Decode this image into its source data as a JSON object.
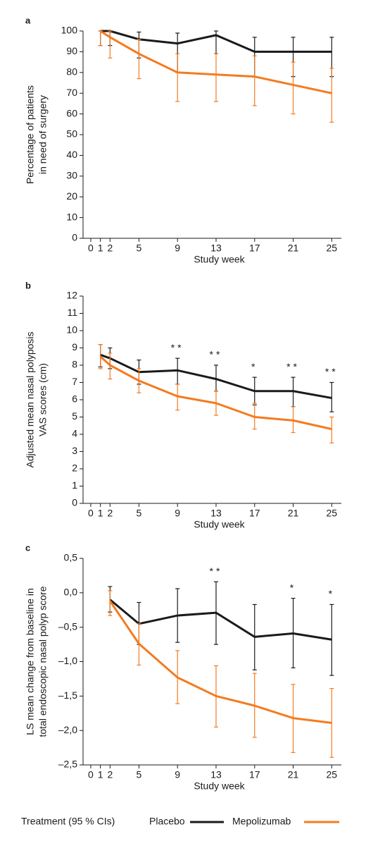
{
  "chart_data": [
    {
      "type": "line",
      "label": "a",
      "xlabel": "Study week",
      "ylabel": [
        "Percentage of patients",
        "in need of surgery"
      ],
      "x": [
        1,
        2,
        5,
        9,
        13,
        17,
        21,
        25
      ],
      "xlim": [
        -0.8,
        26
      ],
      "xticks": [
        0,
        1,
        2,
        5,
        9,
        13,
        17,
        21,
        25
      ],
      "ylim": [
        0,
        100
      ],
      "yticks": [
        0,
        10,
        20,
        30,
        40,
        50,
        60,
        70,
        80,
        90,
        100
      ],
      "series": [
        {
          "color": "#1a1a1a",
          "values": [
            100,
            100,
            96,
            94,
            98,
            90,
            90,
            90
          ],
          "lower": [
            93,
            93,
            87,
            80,
            89,
            78,
            78,
            78
          ],
          "upper": [
            100,
            100,
            99.5,
            99,
            100,
            97,
            97,
            97
          ]
        },
        {
          "color": "#f47b20",
          "values": [
            100,
            97,
            89,
            80,
            79,
            78,
            74,
            70
          ],
          "lower": [
            93,
            87,
            77,
            66,
            66,
            64,
            60,
            56
          ],
          "upper": [
            100,
            100,
            96,
            89,
            89,
            88,
            85,
            82
          ]
        }
      ],
      "annotations": []
    },
    {
      "type": "line",
      "label": "b",
      "xlabel": "Study week",
      "ylabel": [
        "Adjusted mean nasal polyposis",
        "VAS scores (cm)"
      ],
      "x": [
        1,
        2,
        5,
        9,
        13,
        17,
        21,
        25
      ],
      "xlim": [
        -0.8,
        26
      ],
      "xticks": [
        0,
        1,
        2,
        5,
        9,
        13,
        17,
        21,
        25
      ],
      "ylim": [
        0,
        12
      ],
      "yticks": [
        0,
        1,
        2,
        3,
        4,
        5,
        6,
        7,
        8,
        9,
        10,
        11,
        12
      ],
      "series": [
        {
          "color": "#1a1a1a",
          "values": [
            8.6,
            8.4,
            7.6,
            7.7,
            7.2,
            6.5,
            6.5,
            6.1
          ],
          "lower": [
            7.9,
            7.8,
            6.9,
            6.9,
            6.5,
            5.7,
            5.6,
            5.3
          ],
          "upper": [
            9.2,
            9.0,
            8.3,
            8.4,
            8.0,
            7.3,
            7.3,
            7.0
          ]
        },
        {
          "color": "#f47b20",
          "values": [
            8.5,
            8.0,
            7.1,
            6.2,
            5.8,
            5.0,
            4.8,
            4.3
          ],
          "lower": [
            7.8,
            7.2,
            6.4,
            5.4,
            5.1,
            4.3,
            4.1,
            3.5
          ],
          "upper": [
            9.2,
            8.7,
            7.8,
            6.9,
            6.5,
            5.8,
            5.6,
            5.0
          ]
        }
      ],
      "annotations": [
        {
          "x": 9,
          "label": "**"
        },
        {
          "x": 13,
          "label": "**"
        },
        {
          "x": 17,
          "label": "*"
        },
        {
          "x": 21,
          "label": "**"
        },
        {
          "x": 25,
          "label": "**"
        }
      ]
    },
    {
      "type": "line",
      "label": "c",
      "xlabel": "Study week",
      "ylabel": [
        "LS mean change from baseline in",
        "total endoscopic nasal polyp score"
      ],
      "x": [
        2,
        5,
        9,
        13,
        17,
        21,
        25
      ],
      "xlim": [
        -0.8,
        26
      ],
      "xticks": [
        0,
        1,
        2,
        5,
        9,
        13,
        17,
        21,
        25
      ],
      "ylim": [
        -2.5,
        0.5
      ],
      "yticks": [
        {
          "value": -2.5,
          "label": "–2,5"
        },
        {
          "value": -2.0,
          "label": "–2,0"
        },
        {
          "value": -1.5,
          "label": "–1,5"
        },
        {
          "value": -1.0,
          "label": "–1,0"
        },
        {
          "value": -0.5,
          "label": "–0,5"
        },
        {
          "value": 0,
          "label": "0,0"
        },
        {
          "value": 0.5,
          "label": "0,5"
        }
      ],
      "series": [
        {
          "color": "#1a1a1a",
          "values": [
            -0.1,
            -0.45,
            -0.33,
            -0.29,
            -0.64,
            -0.59,
            -0.68
          ],
          "lower": [
            -0.28,
            -0.75,
            -0.72,
            -0.75,
            -1.12,
            -1.09,
            -1.2
          ],
          "upper": [
            0.09,
            -0.14,
            0.06,
            0.16,
            -0.17,
            -0.08,
            -0.17
          ]
        },
        {
          "color": "#f47b20",
          "values": [
            -0.12,
            -0.74,
            -1.23,
            -1.5,
            -1.64,
            -1.82,
            -1.89
          ],
          "lower": [
            -0.33,
            -1.05,
            -1.61,
            -1.95,
            -2.1,
            -2.32,
            -2.39
          ],
          "upper": [
            0.03,
            -0.45,
            -0.84,
            -1.06,
            -1.17,
            -1.33,
            -1.39
          ]
        }
      ],
      "annotations": [
        {
          "x": 13,
          "label": "**"
        },
        {
          "x": 21,
          "label": "*"
        },
        {
          "x": 25,
          "label": "*"
        }
      ]
    }
  ],
  "legend": {
    "title": "Treatment (95 % CIs)",
    "entries": [
      {
        "name": "Placebo",
        "color": "#1a1a1a"
      },
      {
        "name": "Mepolizumab",
        "color": "#f47b20"
      }
    ]
  }
}
